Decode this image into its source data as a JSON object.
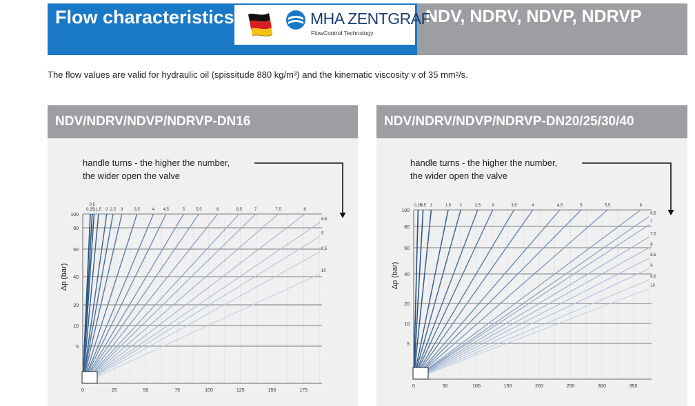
{
  "header": {
    "title": "Flow characteristics",
    "models": "NDV, NDRV, NDVP, NDRVP",
    "brand_name": "MHA ZENTGRAF",
    "brand_tagline": "FlowControl Technology",
    "flag_icon": "germany-flag-icon",
    "brand_icon": "mha-logo-icon",
    "colors": {
      "blue": "#1a79c6",
      "gray": "#9c9ea1",
      "brand": "#1b3e73"
    }
  },
  "intro": "The flow values are valid for hydraulic oil (spissitude 880 kg/m³) and the kinematic viscosity v of 35 mm²/s.",
  "panels": [
    {
      "title": "NDV/NDRV/NDVP/NDRVP-DN16",
      "note_line1": "handle turns - the higher the number,",
      "note_line2": "the wider open the valve"
    },
    {
      "title": "NDV/NDRV/NDVP/NDRVP-DN20/25/30/40",
      "note_line1": "handle turns - the higher the number,",
      "note_line2": "the wider open the valve"
    }
  ],
  "chart_data": [
    {
      "type": "line",
      "title": "NDV/NDRV/NDVP/NDRVP-DN16",
      "xlabel": "",
      "ylabel": "Δp (bar)",
      "x_ticks": [
        "0",
        "25",
        "50",
        "75",
        "100",
        "125",
        "150",
        "175"
      ],
      "y_ticks": [
        "5",
        "10",
        "20",
        "40",
        "60",
        "80",
        "100"
      ],
      "y_scale": "nonlinear",
      "xlim": [
        0,
        190
      ],
      "ylim": [
        0,
        100
      ],
      "grid": true,
      "series": [
        {
          "name": "0,25",
          "x": [
            0,
            6
          ],
          "y": [
            0,
            100
          ]
        },
        {
          "name": "0,5",
          "x": [
            0,
            7.5
          ],
          "y": [
            0,
            100
          ]
        },
        {
          "name": "1",
          "x": [
            0,
            9
          ],
          "y": [
            0,
            100
          ]
        },
        {
          "name": "1,5",
          "x": [
            0,
            12.5
          ],
          "y": [
            0,
            100
          ]
        },
        {
          "name": "2",
          "x": [
            0,
            19
          ],
          "y": [
            0,
            100
          ]
        },
        {
          "name": "2,5",
          "x": [
            0,
            24
          ],
          "y": [
            0,
            100
          ]
        },
        {
          "name": "3",
          "x": [
            0,
            31
          ],
          "y": [
            0,
            100
          ]
        },
        {
          "name": "3,5",
          "x": [
            0,
            43
          ],
          "y": [
            0,
            100
          ]
        },
        {
          "name": "4",
          "x": [
            0,
            56
          ],
          "y": [
            0,
            100
          ]
        },
        {
          "name": "4,5",
          "x": [
            0,
            66
          ],
          "y": [
            0,
            100
          ]
        },
        {
          "name": "5",
          "x": [
            0,
            80
          ],
          "y": [
            0,
            100
          ]
        },
        {
          "name": "5,5",
          "x": [
            0,
            92
          ],
          "y": [
            0,
            100
          ]
        },
        {
          "name": "6",
          "x": [
            0,
            107
          ],
          "y": [
            0,
            100
          ]
        },
        {
          "name": "6,5",
          "x": [
            0,
            124
          ],
          "y": [
            0,
            100
          ]
        },
        {
          "name": "7",
          "x": [
            0,
            137
          ],
          "y": [
            0,
            100
          ]
        },
        {
          "name": "7,5",
          "x": [
            0,
            155
          ],
          "y": [
            0,
            100
          ]
        },
        {
          "name": "8",
          "x": [
            0,
            176
          ],
          "y": [
            0,
            100
          ]
        },
        {
          "name": "8,5",
          "x": [
            0,
            188
          ],
          "y": [
            0,
            88
          ]
        },
        {
          "name": "9",
          "x": [
            0,
            188
          ],
          "y": [
            0,
            72
          ]
        },
        {
          "name": "9,5",
          "x": [
            0,
            188
          ],
          "y": [
            0,
            58
          ]
        },
        {
          "name": "10",
          "x": [
            0,
            188
          ],
          "y": [
            0,
            42
          ]
        }
      ]
    },
    {
      "type": "line",
      "title": "NDV/NDRV/NDVP/NDRVP-DN20/25/30/40",
      "xlabel": "",
      "ylabel": "Δp (bar)",
      "x_ticks": [
        "0",
        "50",
        "100",
        "150",
        "200",
        "250",
        "300",
        "350"
      ],
      "y_ticks": [
        "5",
        "10",
        "20",
        "40",
        "60",
        "80",
        "100"
      ],
      "y_scale": "nonlinear",
      "xlim": [
        0,
        380
      ],
      "ylim": [
        0,
        100
      ],
      "grid": true,
      "series": [
        {
          "name": "0,25",
          "x": [
            0,
            7
          ],
          "y": [
            0,
            100
          ]
        },
        {
          "name": "0,5",
          "x": [
            0,
            15
          ],
          "y": [
            0,
            100
          ]
        },
        {
          "name": "1",
          "x": [
            0,
            28
          ],
          "y": [
            0,
            100
          ]
        },
        {
          "name": "1,5",
          "x": [
            0,
            55
          ],
          "y": [
            0,
            100
          ]
        },
        {
          "name": "2",
          "x": [
            0,
            75
          ],
          "y": [
            0,
            100
          ]
        },
        {
          "name": "2,5",
          "x": [
            0,
            102
          ],
          "y": [
            0,
            100
          ]
        },
        {
          "name": "3",
          "x": [
            0,
            126
          ],
          "y": [
            0,
            100
          ]
        },
        {
          "name": "3,5",
          "x": [
            0,
            160
          ],
          "y": [
            0,
            100
          ]
        },
        {
          "name": "4",
          "x": [
            0,
            190
          ],
          "y": [
            0,
            100
          ]
        },
        {
          "name": "4,5",
          "x": [
            0,
            233
          ],
          "y": [
            0,
            100
          ]
        },
        {
          "name": "5",
          "x": [
            0,
            267
          ],
          "y": [
            0,
            100
          ]
        },
        {
          "name": "5,5",
          "x": [
            0,
            309
          ],
          "y": [
            0,
            100
          ]
        },
        {
          "name": "6",
          "x": [
            0,
            362
          ],
          "y": [
            0,
            100
          ]
        },
        {
          "name": "6,5",
          "x": [
            0,
            375
          ],
          "y": [
            0,
            92
          ]
        },
        {
          "name": "7",
          "x": [
            0,
            375
          ],
          "y": [
            0,
            82
          ]
        },
        {
          "name": "7,5",
          "x": [
            0,
            375
          ],
          "y": [
            0,
            70
          ]
        },
        {
          "name": "8",
          "x": [
            0,
            375
          ],
          "y": [
            0,
            60
          ]
        },
        {
          "name": "8,5",
          "x": [
            0,
            375
          ],
          "y": [
            0,
            52
          ]
        },
        {
          "name": "9",
          "x": [
            0,
            375
          ],
          "y": [
            0,
            44
          ]
        },
        {
          "name": "9,5",
          "x": [
            0,
            375
          ],
          "y": [
            0,
            36
          ]
        },
        {
          "name": "10",
          "x": [
            0,
            375
          ],
          "y": [
            0,
            30
          ]
        }
      ]
    }
  ]
}
